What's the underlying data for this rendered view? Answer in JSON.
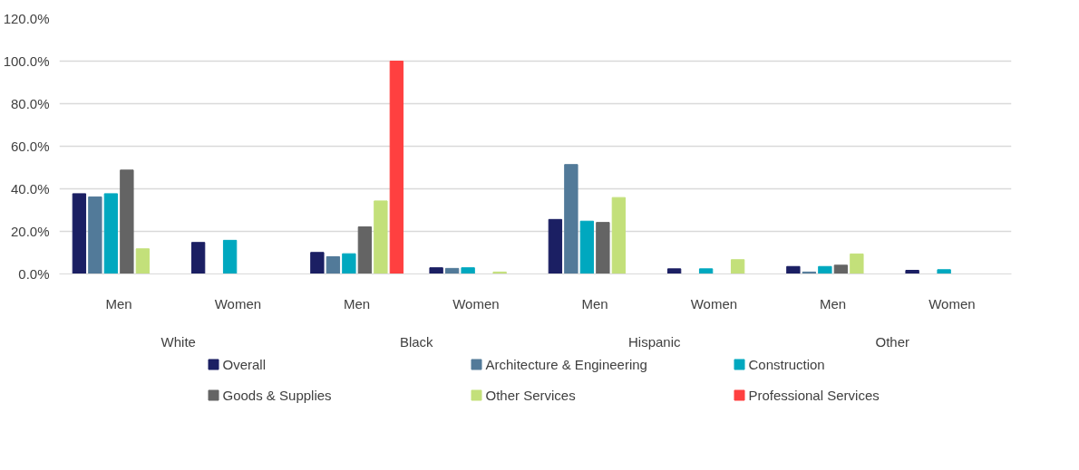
{
  "chart_data": {
    "type": "bar",
    "categories": [
      "Men",
      "Women",
      "Men",
      "Women",
      "Men",
      "Women",
      "Men",
      "Women"
    ],
    "annotations": [
      "White",
      "Black",
      "Hispanic",
      "Other"
    ],
    "series": [
      {
        "name": "Overall",
        "color": "#1b1f63",
        "values": [
          37.7,
          14.8,
          10.1,
          2.9,
          25.6,
          2.4,
          3.5,
          1.7
        ]
      },
      {
        "name": "Architecture & Engineering",
        "color": "#527a99",
        "values": [
          36.2,
          null,
          8.1,
          2.6,
          51.4,
          null,
          0.9,
          null
        ]
      },
      {
        "name": "Construction",
        "color": "#00a8bf",
        "values": [
          37.7,
          15.8,
          9.5,
          2.9,
          24.8,
          2.4,
          3.5,
          2.0
        ]
      },
      {
        "name": "Goods & Supplies",
        "color": "#646464",
        "values": [
          48.8,
          null,
          22.1,
          null,
          24.2,
          null,
          4.1,
          null
        ]
      },
      {
        "name": "Other Services",
        "color": "#c3e07a",
        "values": [
          11.8,
          null,
          34.3,
          0.9,
          35.9,
          6.7,
          9.4,
          null
        ]
      },
      {
        "name": "Professional Services",
        "color": "#ff4040",
        "values": [
          null,
          null,
          100,
          null,
          null,
          null,
          null,
          null
        ]
      }
    ],
    "ylim": [
      0,
      120
    ],
    "yticks": [
      {
        "value": 0,
        "label": "0.0%"
      },
      {
        "value": 20,
        "label": "20.0%"
      },
      {
        "value": 40,
        "label": "40.0%"
      },
      {
        "value": 60,
        "label": "60.0%"
      },
      {
        "value": 80,
        "label": "80.0%"
      },
      {
        "value": 100,
        "label": "100.0%"
      },
      {
        "value": 120,
        "label": "120.0%"
      }
    ],
    "grid": "y",
    "legend": "bottom"
  }
}
